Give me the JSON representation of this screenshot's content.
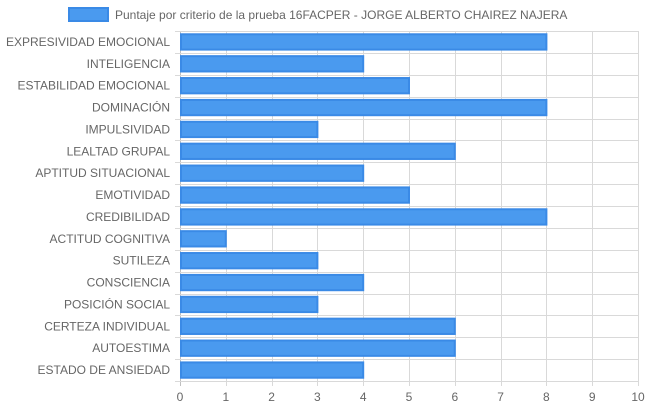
{
  "chart_data": {
    "type": "bar",
    "orientation": "horizontal",
    "legend": {
      "label": "Puntaje por criterio de la prueba 16FACPER - JORGE ALBERTO CHAIREZ NAJERA",
      "placement": "top"
    },
    "categories": [
      "EXPRESIVIDAD EMOCIONAL",
      "INTELIGENCIA",
      "ESTABILIDAD EMOCIONAL",
      "DOMINACIÓN",
      "IMPULSIVIDAD",
      "LEALTAD GRUPAL",
      "APTITUD SITUACIONAL",
      "EMOTIVIDAD",
      "CREDIBILIDAD",
      "ACTITUD COGNITIVA",
      "SUTILEZA",
      "CONSCIENCIA",
      "POSICIÓN SOCIAL",
      "CERTEZA INDIVIDUAL",
      "AUTOESTIMA",
      "ESTADO DE ANSIEDAD"
    ],
    "series": [
      {
        "name": "Puntaje por criterio de la prueba 16FACPER - JORGE ALBERTO CHAIREZ NAJERA",
        "values": [
          8,
          4,
          5,
          8,
          3,
          6,
          4,
          5,
          8,
          1,
          3,
          4,
          3,
          6,
          6,
          4
        ]
      }
    ],
    "xlim": [
      0,
      10
    ],
    "x_ticks": [
      "0",
      "1",
      "2",
      "3",
      "4",
      "5",
      "6",
      "7",
      "8",
      "9",
      "10"
    ],
    "grid": true,
    "colors": {
      "bar_fill": "#4a9aef",
      "bar_stroke": "#3a8ae6",
      "grid": "#d9d9d9",
      "text": "#666666"
    }
  }
}
